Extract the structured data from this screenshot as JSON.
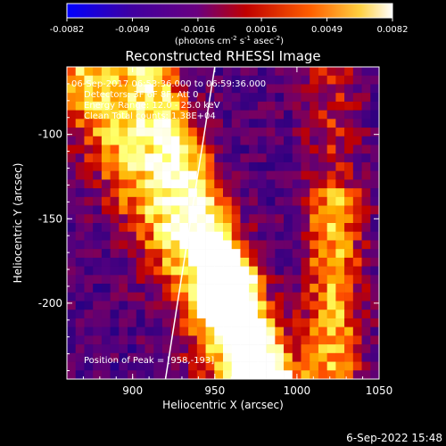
{
  "chart_data": {
    "type": "heatmap",
    "title": "Reconstructed RHESSI Image",
    "xlabel": "Heliocentric X (arcsec)",
    "ylabel": "Heliocentric Y (arcsec)",
    "xlim": [
      860,
      1050
    ],
    "ylim": [
      -245,
      -60
    ],
    "x_ticks": [
      900,
      950,
      1000,
      1050
    ],
    "y_ticks": [
      -100,
      -150,
      -200
    ],
    "colorbar": {
      "min": -0.0082,
      "max": 0.0082,
      "ticks": [
        "-0.0082",
        "-0.0049",
        "-0.0016",
        "0.0016",
        "0.0049",
        "0.0082"
      ],
      "units": "(photons cm",
      "units_sup1": "-2",
      "units_mid": " s",
      "units_sup2": "-1",
      "units_mid2": " asec",
      "units_sup3": "-2",
      "units_end": ")"
    },
    "annotations": {
      "time_range": "06-Sep-2017 06:53:36.000 to 06:59:36.000",
      "detectors": "Detectors: 3F 6F 8F, Att 0",
      "energy": "Energy Range: 12.0 - 25.0 keV",
      "clean": "Clean    Total counts: 1.38E+04",
      "peak": "Position of Peak = [958,-193]"
    },
    "peak_position": [
      958,
      -193
    ],
    "limb_line": [
      [
        920,
        -245
      ],
      [
        950,
        -60
      ]
    ],
    "colormap": [
      "#0000ff",
      "#2a0080",
      "#500080",
      "#7a0060",
      "#c00000",
      "#ff5000",
      "#ffb000",
      "#ffff60",
      "#ffffff"
    ]
  },
  "footer_timestamp": "6-Sep-2022 15:48"
}
